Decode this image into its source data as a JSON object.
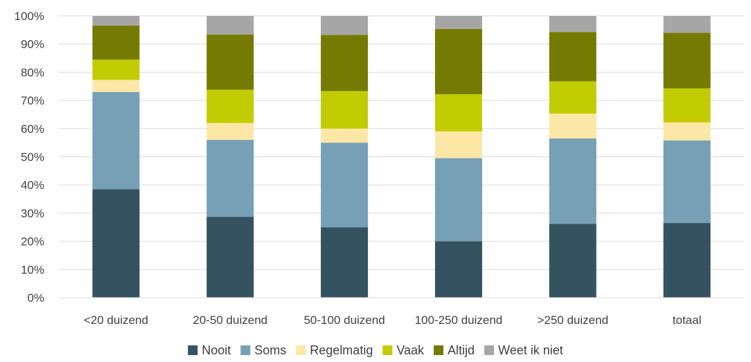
{
  "chart_data": {
    "type": "bar",
    "stacked": true,
    "percent": true,
    "categories": [
      "<20 duizend",
      "20-50 duizend",
      "50-100 duizend",
      "100-250 duizend",
      ">250 duizend",
      "totaal"
    ],
    "series": [
      {
        "name": "Nooit",
        "color": "#34525f",
        "values": [
          38.5,
          28.7,
          25.0,
          20.0,
          26.2,
          26.5
        ]
      },
      {
        "name": "Soms",
        "color": "#76a0b6",
        "values": [
          34.5,
          27.3,
          30.0,
          29.5,
          30.3,
          29.3
        ]
      },
      {
        "name": "Regelmatig",
        "color": "#fde7a6",
        "values": [
          4.3,
          6.0,
          5.0,
          9.5,
          8.8,
          6.4
        ]
      },
      {
        "name": "Vaak",
        "color": "#c2cc02",
        "values": [
          7.2,
          11.8,
          13.3,
          13.2,
          11.5,
          12.1
        ]
      },
      {
        "name": "Altijd",
        "color": "#757b00",
        "values": [
          12.1,
          19.6,
          20.0,
          23.2,
          17.5,
          19.7
        ]
      },
      {
        "name": "Weet ik niet",
        "color": "#a6a6a6",
        "values": [
          3.4,
          6.6,
          6.7,
          4.6,
          5.7,
          6.0
        ]
      }
    ],
    "yticks": [
      "0%",
      "10%",
      "20%",
      "30%",
      "40%",
      "50%",
      "60%",
      "70%",
      "80%",
      "90%",
      "100%"
    ],
    "ylim": [
      0,
      100
    ],
    "grid": true,
    "legend_position": "bottom",
    "title": "",
    "xlabel": "",
    "ylabel": ""
  }
}
